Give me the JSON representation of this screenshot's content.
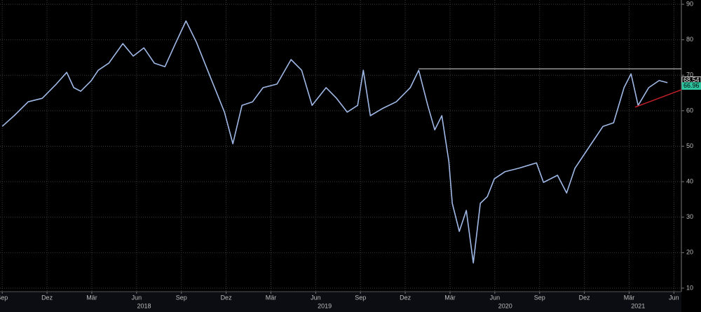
{
  "chart_data": {
    "type": "line",
    "x": [
      0,
      0.8,
      1.74,
      2.68,
      3.62,
      4.32,
      4.79,
      5.26,
      5.97,
      6.43,
      7.14,
      8.08,
      8.78,
      9.49,
      10.19,
      10.9,
      11.6,
      12.31,
      13.01,
      13.95,
      14.89,
      15.45,
      16.06,
      16.77,
      17.47,
      18.41,
      19.35,
      20.06,
      20.76,
      21.7,
      22.4,
      23.11,
      23.81,
      24.19,
      24.66,
      25.46,
      26.4,
      27.34,
      27.9,
      28.51,
      28.98,
      29.45,
      29.92,
      30.15,
      30.62,
      31.09,
      31.56,
      32.03,
      32.5,
      32.97,
      33.68,
      34.62,
      35.79,
      36.26,
      37.2,
      37.81,
      38.37,
      39.31,
      40.25,
      40.96,
      41.66,
      42.13,
      42.6,
      43.31,
      44.01,
      44.57
    ],
    "values": [
      55.6,
      58.6,
      62.5,
      63.5,
      67.5,
      70.8,
      66.5,
      65.5,
      68.5,
      71.4,
      73.4,
      78.9,
      75.4,
      77.7,
      73.4,
      72.4,
      78.9,
      85.3,
      79.3,
      69.4,
      59.6,
      50.7,
      61.5,
      62.5,
      66.5,
      67.5,
      74.4,
      71.4,
      61.5,
      66.5,
      63.5,
      59.6,
      61.5,
      71.4,
      58.6,
      60.6,
      62.5,
      66.5,
      71.4,
      61.5,
      54.6,
      58.6,
      45.7,
      33.9,
      26.0,
      31.9,
      17.1,
      33.9,
      35.8,
      40.8,
      42.8,
      43.8,
      45.3,
      39.8,
      41.8,
      36.8,
      43.8,
      49.7,
      55.6,
      56.6,
      66.5,
      70.4,
      61.5,
      66.5,
      68.5,
      67.9
    ],
    "color": "#9fb8e6",
    "xlim": [
      -0.15,
      45.5
    ],
    "ylim": [
      9,
      91.2
    ],
    "yticks": [
      10,
      20,
      30,
      40,
      50,
      60,
      70,
      80,
      90
    ],
    "xticks": [
      {
        "value": 0,
        "label": "Sep"
      },
      {
        "value": 3,
        "label": "Dez"
      },
      {
        "value": 6,
        "label": "Mär"
      },
      {
        "value": 9,
        "label": "Jun"
      },
      {
        "value": 12,
        "label": "Sep"
      },
      {
        "value": 15,
        "label": "Dez"
      },
      {
        "value": 18,
        "label": "Mär"
      },
      {
        "value": 21,
        "label": "Jun"
      },
      {
        "value": 24,
        "label": "Sep"
      },
      {
        "value": 27,
        "label": "Dez"
      },
      {
        "value": 30,
        "label": "Mär"
      },
      {
        "value": 33,
        "label": "Jun"
      },
      {
        "value": 36,
        "label": "Sep"
      },
      {
        "value": 39,
        "label": "Dez"
      },
      {
        "value": 42,
        "label": "Mär"
      },
      {
        "value": 45,
        "label": "Jun"
      }
    ],
    "year_labels": [
      {
        "value": 9.5,
        "label": "2018"
      },
      {
        "value": 21.6,
        "label": "2019"
      },
      {
        "value": 33.7,
        "label": "2020"
      },
      {
        "value": 42.6,
        "label": "2021"
      }
    ],
    "grid": true,
    "reference_line": {
      "x": 27.9,
      "y": 71.8,
      "color": "#e0e0e0"
    },
    "trend_line": {
      "x": [
        42.4,
        45.5
      ],
      "y": [
        61.0,
        65.9
      ],
      "color": "#c0202a"
    },
    "price_labels": [
      {
        "value": 68.54,
        "color": "#ffffff"
      },
      {
        "value": 66.96,
        "color": "#2ec4a0"
      }
    ]
  }
}
